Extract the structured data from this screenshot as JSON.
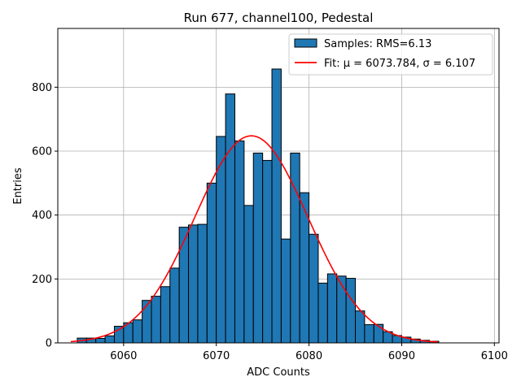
{
  "chart_data": {
    "type": "histogram",
    "title": "Run 677, channel100, Pedestal",
    "xlabel": "ADC Counts",
    "ylabel": "Entries",
    "xlim": [
      6052.9,
      6100.5
    ],
    "ylim": [
      0,
      984
    ],
    "x_ticks": [
      6060,
      6070,
      6080,
      6090,
      6100
    ],
    "y_ticks": [
      0,
      200,
      400,
      600,
      800
    ],
    "grid": true,
    "legend_position": "top-right",
    "bin_width": 1,
    "bins": {
      "edges_start": 6055,
      "counts": [
        15,
        15,
        14,
        22,
        52,
        63,
        72,
        133,
        146,
        176,
        234,
        362,
        369,
        371,
        500,
        646,
        779,
        632,
        430,
        594,
        571,
        857,
        325,
        594,
        470,
        340,
        187,
        216,
        209,
        202,
        100,
        57,
        58,
        35,
        23,
        18,
        12,
        8,
        5
      ]
    },
    "series": [
      {
        "name": "Samples: RMS=6.13",
        "kind": "histogram",
        "color": "#1f77b4",
        "edgecolor": "#000000"
      },
      {
        "name": "Fit: μ = 6073.784, σ = 6.107",
        "kind": "gaussian",
        "color": "#ff0000",
        "mu": 6073.784,
        "sigma": 6.107,
        "amplitude": 648,
        "x_range": [
          6054.3,
          6093.9
        ]
      }
    ]
  }
}
